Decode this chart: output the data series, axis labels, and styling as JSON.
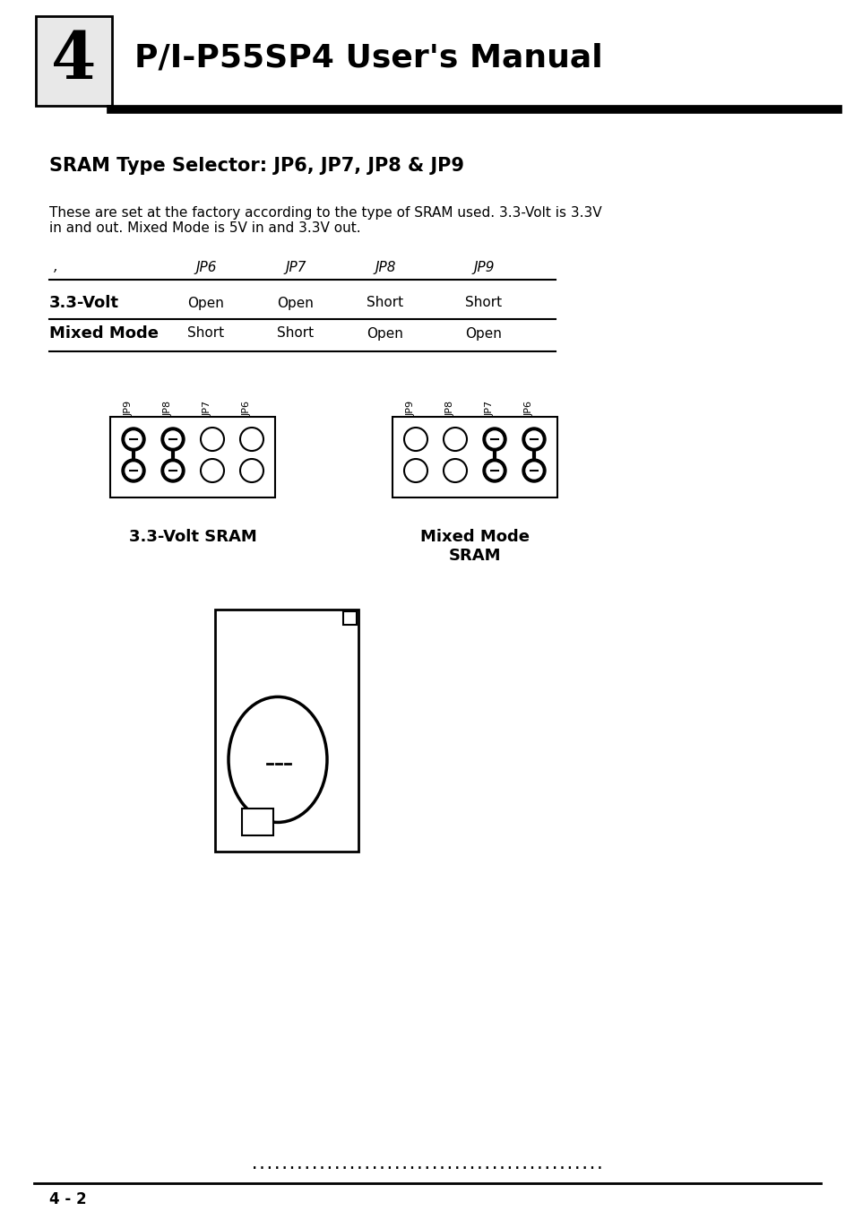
{
  "bg_color": "#ffffff",
  "header_title": "P/I-P55SP4 User's Manual",
  "chapter_num": "4",
  "section_title": "SRAM Type Selector: JP6, JP7, JP8 & JP9",
  "body_text": "These are set at the factory according to the type of SRAM used. 3.3-Volt is 3.3V\nin and out. Mixed Mode is 5V in and 3.3V out.",
  "table_headers": [
    "",
    "JP6",
    "JP7",
    "JP8",
    "JP9"
  ],
  "table_row1_label": "3.3-Volt",
  "table_row1_vals": [
    "Open",
    "Open",
    "Short",
    "Short"
  ],
  "table_row2_label": "Mixed Mode",
  "table_row2_vals": [
    "Short",
    "Short",
    "Open",
    "Open"
  ],
  "label1": "3.3-Volt SRAM",
  "label2": "Mixed Mode\nSRAM",
  "footer_dots": "...............................................",
  "page_num": "4 - 2"
}
